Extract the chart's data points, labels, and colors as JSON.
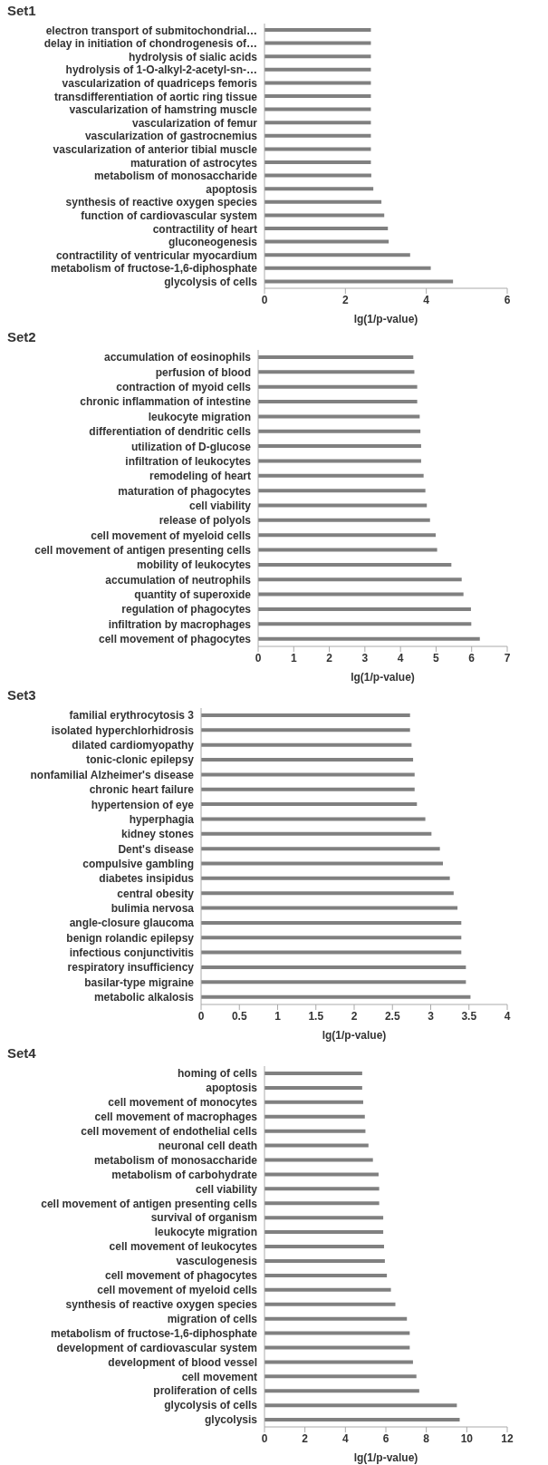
{
  "chart_data": [
    {
      "type": "bar",
      "orientation": "horizontal",
      "title": "Set1",
      "xlabel": "lg(1/p-value)",
      "color": "#808080",
      "xlim": [
        0,
        6
      ],
      "xticks": [
        0,
        2,
        4,
        6
      ],
      "categories": [
        "electron transport of submitochondrial…",
        "delay in initiation of chondrogenesis of…",
        "hydrolysis of sialic acids",
        "hydrolysis of 1-O-alkyl-2-acetyl-sn-…",
        "vascularization of quadriceps femoris",
        "transdifferentiation of aortic ring tissue",
        "vascularization of hamstring muscle",
        "vascularization of femur",
        "vascularization of gastrocnemius",
        "vascularization of anterior tibial muscle",
        "maturation of astrocytes",
        "metabolism of monosaccharide",
        "apoptosis",
        "synthesis of reactive oxygen species",
        "function of cardiovascular system",
        "contractility of heart",
        "gluconeogenesis",
        "contractility of ventricular myocardium",
        "metabolism of fructose-1,6-diphosphate",
        "glycolysis of cells"
      ],
      "values": [
        2.63,
        2.63,
        2.63,
        2.63,
        2.63,
        2.63,
        2.63,
        2.63,
        2.63,
        2.63,
        2.63,
        2.64,
        2.69,
        2.89,
        2.96,
        3.05,
        3.07,
        3.6,
        4.11,
        4.66
      ]
    },
    {
      "type": "bar",
      "orientation": "horizontal",
      "title": "Set2",
      "xlabel": "lg(1/p-value)",
      "color": "#808080",
      "xlim": [
        0,
        7
      ],
      "xticks": [
        0,
        1,
        2,
        3,
        4,
        5,
        6,
        7
      ],
      "categories": [
        "accumulation of eosinophils",
        "perfusion of blood",
        "contraction of myoid cells",
        "chronic inflammation of intestine",
        "leukocyte migration",
        "differentiation of dendritic cells",
        "utilization of D-glucose",
        "infiltration of leukocytes",
        "remodeling of heart",
        "maturation of phagocytes",
        "cell viability",
        "release of polyols",
        "cell movement of myeloid cells",
        "cell movement of antigen presenting cells",
        "mobility of leukocytes",
        "accumulation of neutrophils",
        "quantity of superoxide",
        "regulation of phagocytes",
        "infiltration by macrophages",
        "cell movement of phagocytes"
      ],
      "values": [
        4.36,
        4.39,
        4.47,
        4.47,
        4.54,
        4.56,
        4.58,
        4.58,
        4.65,
        4.7,
        4.74,
        4.83,
        4.99,
        5.03,
        5.43,
        5.72,
        5.77,
        5.98,
        5.99,
        6.23
      ]
    },
    {
      "type": "bar",
      "orientation": "horizontal",
      "title": "Set3",
      "xlabel": "lg(1/p-value)",
      "color": "#808080",
      "xlim": [
        0,
        4
      ],
      "xticks": [
        0,
        0.5,
        1,
        1.5,
        2,
        2.5,
        3,
        3.5,
        4
      ],
      "categories": [
        "familial erythrocytosis 3",
        "isolated hyperchlorhidrosis",
        "dilated cardiomyopathy",
        "tonic-clonic epilepsy",
        "nonfamilial Alzheimer's disease",
        "chronic heart failure",
        "hypertension of eye",
        "hyperphagia",
        "kidney stones",
        "Dent's disease",
        "compulsive gambling",
        "diabetes insipidus",
        "central obesity",
        "bulimia nervosa",
        "angle-closure glaucoma",
        "benign rolandic epilepsy",
        "infectious conjunctivitis",
        "respiratory insufficiency",
        "basilar-type migraine",
        "metabolic alkalosis"
      ],
      "values": [
        2.73,
        2.73,
        2.75,
        2.77,
        2.79,
        2.79,
        2.82,
        2.93,
        3.01,
        3.12,
        3.16,
        3.25,
        3.3,
        3.35,
        3.4,
        3.4,
        3.4,
        3.46,
        3.46,
        3.52
      ]
    },
    {
      "type": "bar",
      "orientation": "horizontal",
      "title": "Set4",
      "xlabel": "lg(1/p-value)",
      "color": "#808080",
      "xlim": [
        0,
        12
      ],
      "xticks": [
        0,
        2,
        4,
        6,
        8,
        10,
        12
      ],
      "categories": [
        "homing of cells",
        "apoptosis",
        "cell movement of monocytes",
        "cell movement of macrophages",
        "cell movement of endothelial cells",
        "neuronal cell death",
        "metabolism of monosaccharide",
        "metabolism of carbohydrate",
        "cell viability",
        "cell movement of antigen presenting cells",
        "survival of organism",
        "leukocyte migration",
        "cell movement of leukocytes",
        "vasculogenesis",
        "cell movement of phagocytes",
        "cell movement of myeloid cells",
        "synthesis of reactive oxygen species",
        "migration of cells",
        "metabolism of fructose-1,6-diphosphate",
        "development of cardiovascular system",
        "development of blood vessel",
        "cell movement",
        "proliferation of cells",
        "glycolysis of cells",
        "glycolysis"
      ],
      "values": [
        4.83,
        4.83,
        4.88,
        4.96,
        4.99,
        5.14,
        5.36,
        5.64,
        5.67,
        5.67,
        5.87,
        5.87,
        5.91,
        5.95,
        6.05,
        6.25,
        6.47,
        7.04,
        7.18,
        7.18,
        7.34,
        7.51,
        7.65,
        9.51,
        9.65
      ]
    }
  ]
}
